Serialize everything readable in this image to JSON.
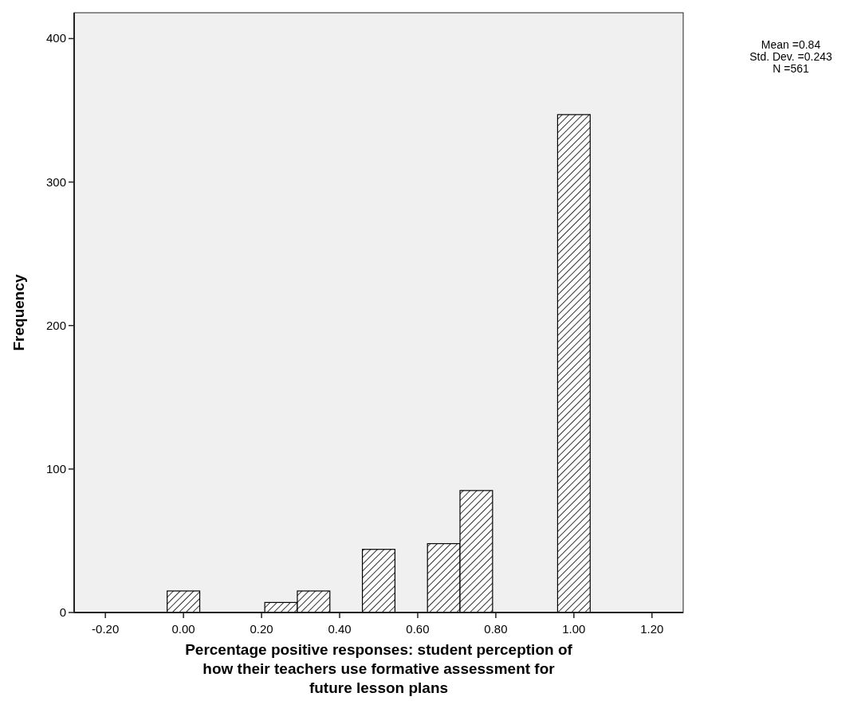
{
  "chart_data": {
    "type": "histogram",
    "xlabel": "Percentage positive responses: student perception of how their teachers use formative assessment for future lesson plans",
    "ylabel": "Frequency",
    "bins": [
      -0.0417,
      0.0417,
      0.125,
      0.2083,
      0.2917,
      0.375,
      0.4583,
      0.5417,
      0.625,
      0.7083,
      0.7917,
      0.875,
      0.9583,
      1.0417
    ],
    "values": [
      15,
      0,
      0,
      7,
      15,
      0,
      44,
      0,
      48,
      85,
      0,
      0,
      347
    ],
    "xlim": [
      -0.28,
      1.28
    ],
    "xticks": [
      {
        "value": -0.2,
        "label": "-0.20"
      },
      {
        "value": 0,
        "label": "0.00"
      },
      {
        "value": 0.2,
        "label": "0.20"
      },
      {
        "value": 0.4,
        "label": "0.40"
      },
      {
        "value": 0.6,
        "label": "0.60"
      },
      {
        "value": 0.8,
        "label": "0.80"
      },
      {
        "value": 1,
        "label": "1.00"
      },
      {
        "value": 1.2,
        "label": "1.20"
      }
    ],
    "ylim": [
      0,
      418
    ],
    "yticks": [
      0,
      100,
      200,
      300,
      400
    ],
    "annotations": [
      "Mean =0.84",
      "Std. Dev. =0.243",
      "N =561"
    ],
    "grid": false
  }
}
